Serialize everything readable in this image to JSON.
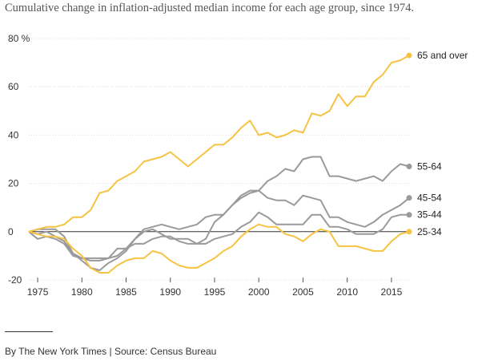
{
  "title": "Cumulative change in inflation-adjusted median income for each age group, since 1974.",
  "credit": "By The New York Times | Source: Census Bureau",
  "chart_data": {
    "type": "line",
    "xlim": [
      1974,
      2017
    ],
    "ylim": [
      -20,
      80
    ],
    "x_ticks": [
      1975,
      1980,
      1985,
      1990,
      1995,
      2000,
      2005,
      2010,
      2015
    ],
    "y_ticks": [
      {
        "value": 80,
        "label": "80 %"
      },
      {
        "value": 60,
        "label": "60"
      },
      {
        "value": 40,
        "label": "40"
      },
      {
        "value": 20,
        "label": "20"
      },
      {
        "value": 0,
        "label": "0"
      },
      {
        "value": -20,
        "label": "-20"
      }
    ],
    "grid": "horizontal",
    "zero_line": true,
    "x": [
      1974,
      1975,
      1976,
      1977,
      1978,
      1979,
      1980,
      1981,
      1982,
      1983,
      1984,
      1985,
      1986,
      1987,
      1988,
      1989,
      1990,
      1991,
      1992,
      1993,
      1994,
      1995,
      1996,
      1997,
      1998,
      1999,
      2000,
      2001,
      2002,
      2003,
      2004,
      2005,
      2006,
      2007,
      2008,
      2009,
      2010,
      2011,
      2012,
      2013,
      2014,
      2015,
      2016,
      2017
    ],
    "series": [
      {
        "name": "65 and over",
        "color": "#f6c342",
        "values": [
          0,
          1,
          2,
          2,
          3,
          6,
          6,
          9,
          16,
          17,
          21,
          23,
          25,
          29,
          30,
          31,
          33,
          30,
          27,
          30,
          33,
          36,
          36,
          39,
          43,
          46,
          40,
          41,
          39,
          40,
          42,
          41,
          49,
          48,
          50,
          57,
          52,
          56,
          56,
          62,
          65,
          70,
          71,
          73
        ]
      },
      {
        "name": "55-64",
        "color": "#9a9a9a",
        "values": [
          0,
          -1,
          0,
          -2,
          -4,
          -9,
          -12,
          -15,
          -16,
          -13,
          -11,
          -8,
          -3,
          1,
          2,
          3,
          2,
          1,
          2,
          3,
          6,
          7,
          7,
          11,
          15,
          17,
          17,
          21,
          23,
          26,
          25,
          30,
          31,
          31,
          23,
          23,
          22,
          21,
          22,
          23,
          21,
          25,
          28,
          27
        ]
      },
      {
        "name": "45-54",
        "color": "#9a9a9a",
        "values": [
          0,
          -3,
          -2,
          -3,
          -5,
          -10,
          -11,
          -11,
          -11,
          -11,
          -10,
          -7,
          -3,
          0,
          1,
          -1,
          -3,
          -3,
          -3,
          -5,
          -3,
          4,
          7,
          11,
          14,
          16,
          17,
          14,
          13,
          13,
          11,
          15,
          14,
          13,
          6,
          6,
          4,
          3,
          2,
          4,
          7,
          9,
          11,
          14
        ]
      },
      {
        "name": "35-44",
        "color": "#9a9a9a",
        "values": [
          0,
          1,
          1,
          1,
          -2,
          -9,
          -11,
          -12,
          -12,
          -11,
          -7,
          -7,
          -5,
          -5,
          -3,
          -2,
          -2,
          -4,
          -5,
          -5,
          -5,
          -3,
          -2,
          -1,
          2,
          4,
          8,
          6,
          3,
          3,
          3,
          3,
          7,
          7,
          2,
          2,
          1,
          -1,
          -1,
          -1,
          1,
          6,
          7,
          7
        ]
      },
      {
        "name": "25-34",
        "color": "#f6c342",
        "values": [
          0,
          -1,
          -2,
          -2,
          -3,
          -7,
          -10,
          -15,
          -17,
          -17,
          -14,
          -12,
          -11,
          -11,
          -8,
          -9,
          -12,
          -14,
          -15,
          -15,
          -13,
          -11,
          -8,
          -6,
          -2,
          1,
          3,
          2,
          2,
          -1,
          -2,
          -4,
          -1,
          1,
          0,
          -6,
          -6,
          -6,
          -7,
          -8,
          -8,
          -4,
          -1,
          0
        ]
      }
    ]
  }
}
